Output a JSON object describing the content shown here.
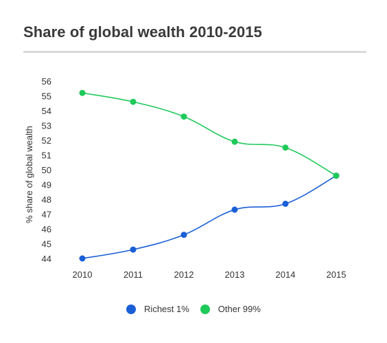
{
  "chart_data": {
    "type": "line",
    "title": "Share of global wealth 2010-2015",
    "xlabel": "",
    "ylabel": "% share of global wealth",
    "x": [
      "2010",
      "2011",
      "2012",
      "2013",
      "2014",
      "2015"
    ],
    "yticks": [
      44,
      45,
      46,
      47,
      48,
      49,
      50,
      51,
      52,
      53,
      54,
      55,
      56
    ],
    "ylim": [
      44,
      56
    ],
    "grid": false,
    "legend_position": "bottom",
    "series": [
      {
        "name": "Richest 1%",
        "color": "#1a5fd6",
        "values": [
          44.0,
          44.6,
          45.6,
          47.3,
          47.7,
          49.6
        ]
      },
      {
        "name": "Other 99%",
        "color": "#1fc95a",
        "values": [
          55.2,
          54.6,
          53.6,
          51.9,
          51.5,
          49.6
        ]
      }
    ]
  }
}
